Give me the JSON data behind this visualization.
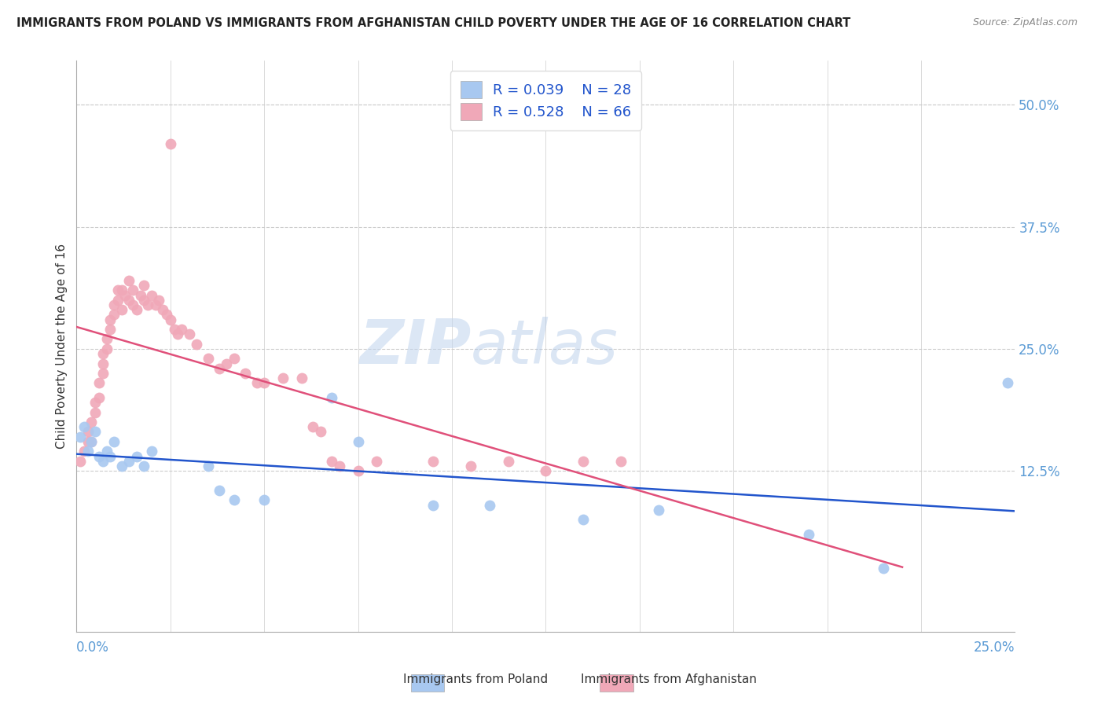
{
  "title": "IMMIGRANTS FROM POLAND VS IMMIGRANTS FROM AFGHANISTAN CHILD POVERTY UNDER THE AGE OF 16 CORRELATION CHART",
  "source": "Source: ZipAtlas.com",
  "ylabel": "Child Poverty Under the Age of 16",
  "y_tick_labels": [
    "12.5%",
    "25.0%",
    "37.5%",
    "50.0%"
  ],
  "y_tick_values": [
    0.125,
    0.25,
    0.375,
    0.5
  ],
  "x_lim": [
    0.0,
    0.25
  ],
  "y_lim": [
    -0.04,
    0.545
  ],
  "legend_r_poland": "R = 0.039",
  "legend_n_poland": "N = 28",
  "legend_r_afghan": "R = 0.528",
  "legend_n_afghan": "N = 66",
  "poland_color": "#a8c8f0",
  "afghan_color": "#f0a8b8",
  "poland_line_color": "#2255cc",
  "afghan_line_color": "#e0507a",
  "watermark_zip": "ZIP",
  "watermark_atlas": "atlas",
  "watermark_color_zip": "#c8d8f0",
  "watermark_color_atlas": "#b0c4e8",
  "background_color": "#ffffff",
  "poland_x": [
    0.001,
    0.002,
    0.003,
    0.004,
    0.005,
    0.006,
    0.007,
    0.008,
    0.009,
    0.01,
    0.012,
    0.014,
    0.016,
    0.018,
    0.02,
    0.035,
    0.038,
    0.042,
    0.05,
    0.068,
    0.075,
    0.095,
    0.11,
    0.135,
    0.155,
    0.195,
    0.215,
    0.248
  ],
  "poland_y": [
    0.16,
    0.17,
    0.145,
    0.155,
    0.165,
    0.14,
    0.135,
    0.145,
    0.14,
    0.155,
    0.13,
    0.135,
    0.14,
    0.13,
    0.145,
    0.13,
    0.105,
    0.095,
    0.095,
    0.2,
    0.155,
    0.09,
    0.09,
    0.075,
    0.085,
    0.06,
    0.025,
    0.215
  ],
  "afghan_x": [
    0.001,
    0.002,
    0.003,
    0.003,
    0.004,
    0.004,
    0.005,
    0.005,
    0.006,
    0.006,
    0.007,
    0.007,
    0.007,
    0.008,
    0.008,
    0.009,
    0.009,
    0.01,
    0.01,
    0.011,
    0.011,
    0.012,
    0.012,
    0.013,
    0.014,
    0.014,
    0.015,
    0.015,
    0.016,
    0.017,
    0.018,
    0.018,
    0.019,
    0.02,
    0.021,
    0.022,
    0.023,
    0.024,
    0.025,
    0.025,
    0.026,
    0.027,
    0.028,
    0.03,
    0.032,
    0.035,
    0.038,
    0.04,
    0.042,
    0.045,
    0.048,
    0.05,
    0.055,
    0.06,
    0.063,
    0.065,
    0.068,
    0.07,
    0.075,
    0.08,
    0.095,
    0.105,
    0.115,
    0.125,
    0.135,
    0.145
  ],
  "afghan_y": [
    0.135,
    0.145,
    0.155,
    0.165,
    0.155,
    0.175,
    0.185,
    0.195,
    0.2,
    0.215,
    0.225,
    0.235,
    0.245,
    0.25,
    0.26,
    0.27,
    0.28,
    0.285,
    0.295,
    0.3,
    0.31,
    0.29,
    0.31,
    0.305,
    0.3,
    0.32,
    0.31,
    0.295,
    0.29,
    0.305,
    0.315,
    0.3,
    0.295,
    0.305,
    0.295,
    0.3,
    0.29,
    0.285,
    0.28,
    0.46,
    0.27,
    0.265,
    0.27,
    0.265,
    0.255,
    0.24,
    0.23,
    0.235,
    0.24,
    0.225,
    0.215,
    0.215,
    0.22,
    0.22,
    0.17,
    0.165,
    0.135,
    0.13,
    0.125,
    0.135,
    0.135,
    0.13,
    0.135,
    0.125,
    0.135,
    0.135
  ]
}
